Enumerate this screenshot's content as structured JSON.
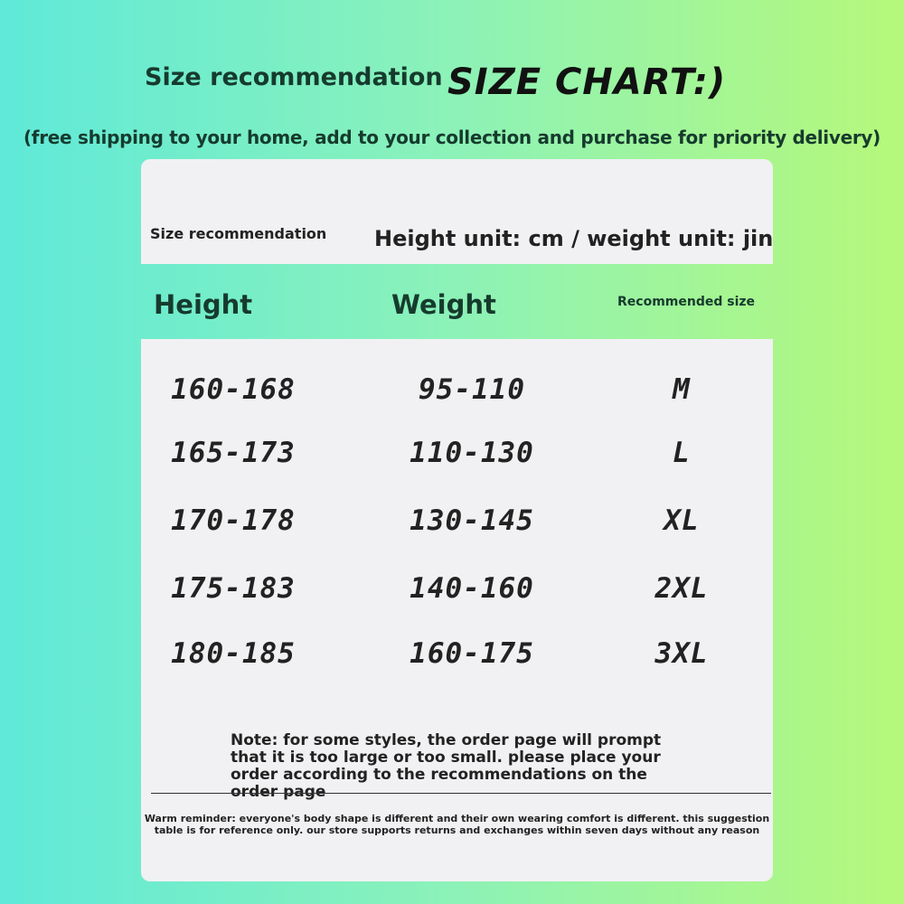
{
  "header": {
    "label": "Size recommendation",
    "title": "SIZE CHART:)",
    "subtitle": "(free shipping to your home, add to your collection and purchase for priority delivery)"
  },
  "card": {
    "label": "Size recommendation",
    "units": "Height unit: cm / weight unit: jin"
  },
  "table": {
    "columns": [
      "Height",
      "Weight",
      "Recommended size"
    ],
    "rows": [
      [
        "160-168",
        "95-110",
        "M"
      ],
      [
        "165-173",
        "110-130",
        "L"
      ],
      [
        "170-178",
        "130-145",
        "XL"
      ],
      [
        "175-183",
        "140-160",
        "2XL"
      ],
      [
        "180-185",
        "160-175",
        "3XL"
      ]
    ]
  },
  "note": "Note: for some styles, the order page will prompt that it is too large or too small. please place your order according to the recommendations on the order page",
  "reminder": "Warm reminder: everyone's body shape is different and their own wearing comfort is different. this suggestion table is for reference only. our store supports returns and exchanges within seven days without any reason"
}
